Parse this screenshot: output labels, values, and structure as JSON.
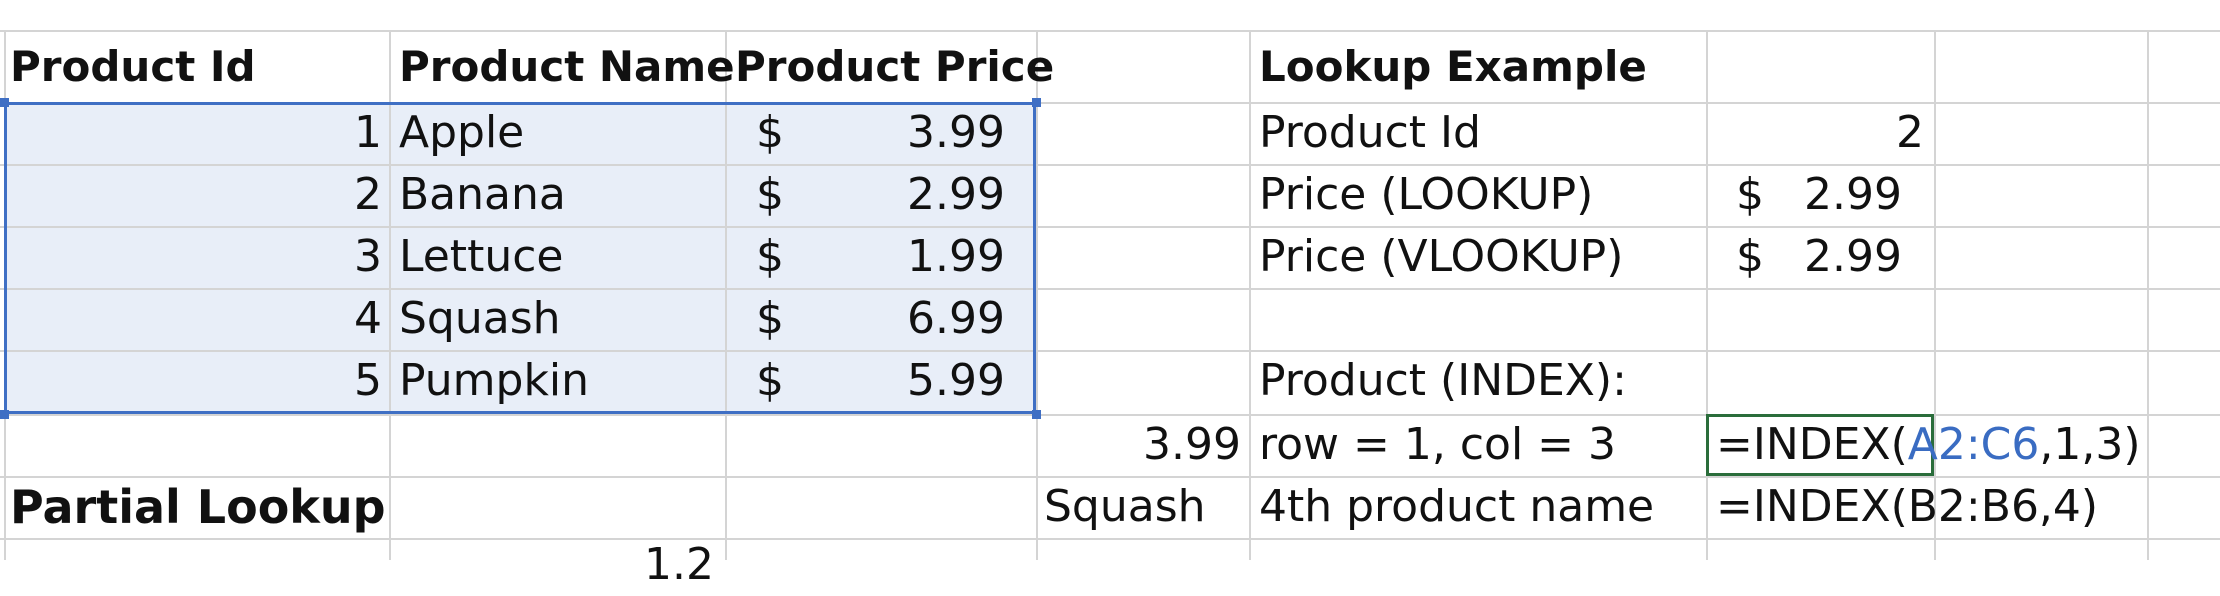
{
  "header_row": {
    "product_id": "Product Id",
    "product_name": "Product Name",
    "product_price": "Product Price",
    "lookup_example": "Lookup Example"
  },
  "products": [
    {
      "id": "1",
      "name": "Apple",
      "currency": "$",
      "price": "3.99"
    },
    {
      "id": "2",
      "name": "Banana",
      "currency": "$",
      "price": "2.99"
    },
    {
      "id": "3",
      "name": "Lettuce",
      "currency": "$",
      "price": "1.99"
    },
    {
      "id": "4",
      "name": "Squash",
      "currency": "$",
      "price": "6.99"
    },
    {
      "id": "5",
      "name": "Pumpkin",
      "currency": "$",
      "price": "5.99"
    }
  ],
  "lookup": {
    "product_id_label": "Product Id",
    "product_id_value": "2",
    "price_lookup_label": "Price (LOOKUP)",
    "price_lookup_currency": "$",
    "price_lookup_value": "2.99",
    "price_vlookup_label": "Price (VLOOKUP)",
    "price_vlookup_currency": "$",
    "price_vlookup_value": "2.99",
    "index_heading": "Product (INDEX):",
    "index_result_1": "3.99",
    "index_desc_1": "row = 1, col = 3",
    "formula_1_prefix": "=INDEX(",
    "formula_1_ref": "A2:C6",
    "formula_1_suffix": ",1,3)",
    "index_result_2": "Squash",
    "index_desc_2": "4th product name",
    "formula_2": "=INDEX(B2:B6,4)"
  },
  "partial_lookup": {
    "title": "Partial Lookup",
    "partial_value": "1.2"
  }
}
